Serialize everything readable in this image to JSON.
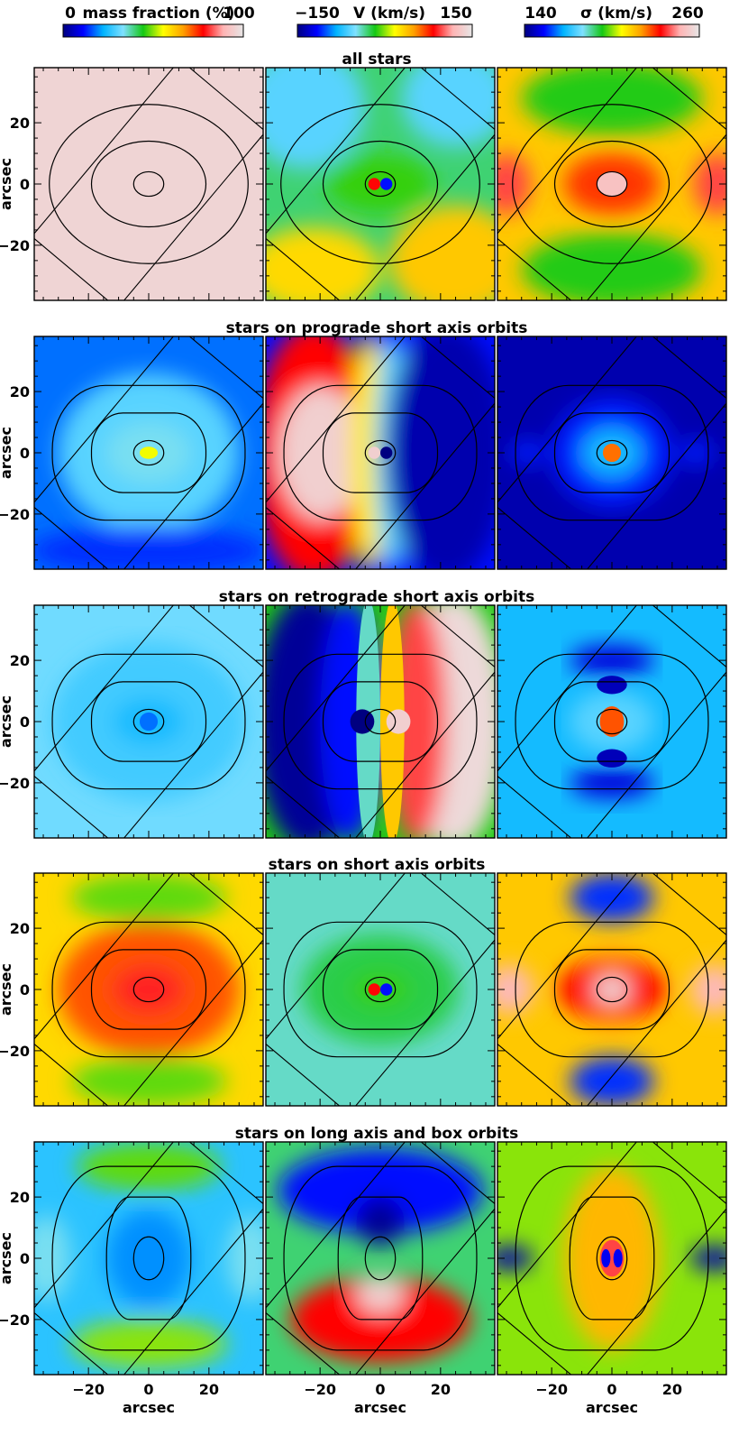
{
  "colorbars": [
    {
      "min_label": "0",
      "label": "mass fraction (%)",
      "max_label": "100",
      "min": 0,
      "max": 100
    },
    {
      "min_label": "−150",
      "label": "V (km/s)",
      "max_label": "150",
      "min": -150,
      "max": 150
    },
    {
      "min_label": "140",
      "label": "σ (km/s)",
      "max_label": "260",
      "min": 140,
      "max": 260
    }
  ],
  "colormap": [
    "#000080",
    "#0000ff",
    "#00b4ff",
    "#7fe0ff",
    "#14c814",
    "#ffff00",
    "#ffa000",
    "#ff0000",
    "#ffb4b4",
    "#e6e6e6"
  ],
  "rows": [
    {
      "title": "all stars"
    },
    {
      "title": "stars on prograde short axis orbits"
    },
    {
      "title": "stars on retrograde short axis orbits"
    },
    {
      "title": "stars on short axis orbits"
    },
    {
      "title": "stars on long axis and box orbits"
    }
  ],
  "axes": {
    "xlabel": "arcsec",
    "ylabel": "arcsec",
    "tick_labels": [
      "20",
      "0",
      "−20"
    ],
    "xtick_labels": [
      "−20",
      "0",
      "20"
    ]
  },
  "chart_data": {
    "type": "heatmap",
    "title": "",
    "xlabel": "arcsec",
    "ylabel": "arcsec",
    "xlim": [
      -38,
      38
    ],
    "ylim": [
      -38,
      38
    ],
    "xticks": [
      -20,
      0,
      20
    ],
    "yticks": [
      -20,
      0,
      20
    ],
    "grid": false,
    "columns": [
      "mass fraction (%)",
      "V (km/s)",
      "σ (km/s)"
    ],
    "approx_values": [
      {
        "row": "all stars",
        "mass_fraction": 100,
        "V_outer": [
          -60,
          60
        ],
        "sigma_center": 255,
        "sigma_outer": 205
      },
      {
        "row": "stars on prograde short axis orbits",
        "mass_fraction_center": 45,
        "mass_fraction_outer": 20,
        "V_left": 150,
        "V_right": -150,
        "sigma_typical": 150
      },
      {
        "row": "stars on retrograde short axis orbits",
        "mass_fraction_center": 20,
        "mass_fraction_outer": 30,
        "V_left": -150,
        "V_right": 150,
        "sigma_typical": 170
      },
      {
        "row": "stars on short axis orbits",
        "mass_fraction_center": 80,
        "mass_fraction_outer": 60,
        "V_outer": [
          -30,
          30
        ],
        "sigma_center": 260,
        "sigma_outer": 220
      },
      {
        "row": "stars on long axis and box orbits",
        "mass_fraction_center": 15,
        "mass_fraction_outer": 45,
        "V_top": -140,
        "V_bottom": 130,
        "sigma_typical": 210
      }
    ]
  }
}
